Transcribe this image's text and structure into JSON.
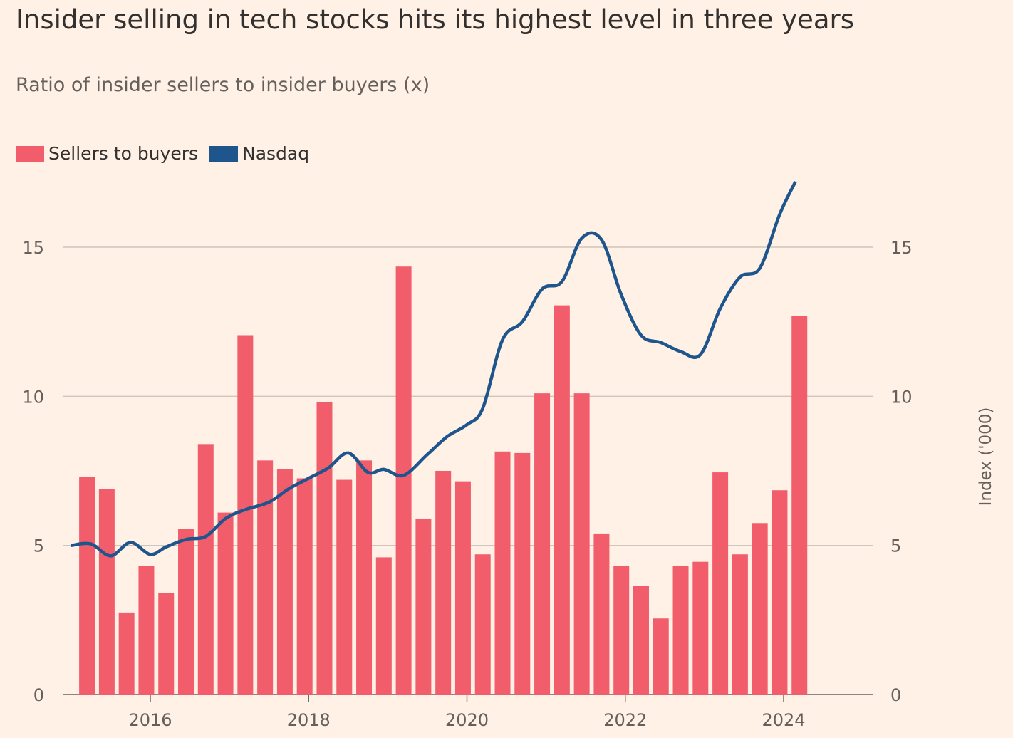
{
  "chart_data": {
    "type": "bar",
    "title": "Insider selling in tech stocks hits its highest level in three years",
    "subtitle": "Ratio of insider sellers to insider buyers (x)",
    "ylabel_right": "Index ('000)",
    "legend": [
      {
        "name": "Sellers to buyers",
        "color": "#F25D6B"
      },
      {
        "name": "Nasdaq",
        "color": "#1E558C"
      }
    ],
    "ylim": [
      0,
      15
    ],
    "y_ticks": [
      0,
      5,
      10,
      15
    ],
    "y_tick_labels_left": [
      "0",
      "5",
      "10",
      "15"
    ],
    "y_tick_labels_right": [
      "0",
      "5",
      "10",
      "15"
    ],
    "x_ticks": [
      2016,
      2018,
      2020,
      2022,
      2024
    ],
    "x_tick_labels": [
      "2016",
      "2018",
      "2020",
      "2022",
      "2024"
    ],
    "xlim": [
      2015.0,
      2025.0
    ],
    "grid": true,
    "series": [
      {
        "name": "Sellers to buyers",
        "type": "bar",
        "color": "#F25D6B",
        "x": [
          2015.2,
          2015.45,
          2015.7,
          2015.95,
          2016.2,
          2016.45,
          2016.7,
          2016.95,
          2017.2,
          2017.45,
          2017.7,
          2017.95,
          2018.2,
          2018.45,
          2018.7,
          2018.95,
          2019.2,
          2019.45,
          2019.7,
          2019.95,
          2020.2,
          2020.45,
          2020.7,
          2020.95,
          2021.2,
          2021.45,
          2021.7,
          2021.95,
          2022.2,
          2022.45,
          2022.7,
          2022.95,
          2023.2,
          2023.45,
          2023.7,
          2023.95,
          2024.2
        ],
        "values": [
          7.3,
          6.9,
          2.75,
          4.3,
          3.4,
          5.55,
          8.4,
          6.1,
          12.05,
          7.85,
          7.55,
          7.25,
          9.8,
          7.2,
          7.85,
          4.6,
          14.35,
          5.9,
          7.5,
          7.15,
          4.7,
          8.15,
          8.1,
          10.1,
          13.05,
          10.1,
          5.4,
          4.3,
          3.65,
          2.55,
          4.3,
          4.45,
          7.45,
          4.7,
          5.75,
          6.85,
          12.7
        ]
      },
      {
        "name": "Nasdaq",
        "type": "line",
        "color": "#1E558C",
        "x": [
          2015.0,
          2015.25,
          2015.5,
          2015.75,
          2016.0,
          2016.2,
          2016.45,
          2016.7,
          2016.95,
          2017.2,
          2017.5,
          2017.75,
          2018.0,
          2018.25,
          2018.5,
          2018.75,
          2018.95,
          2019.2,
          2019.5,
          2019.75,
          2020.0,
          2020.2,
          2020.45,
          2020.7,
          2020.95,
          2021.2,
          2021.45,
          2021.7,
          2021.95,
          2022.2,
          2022.45,
          2022.7,
          2022.95,
          2023.2,
          2023.45,
          2023.7,
          2023.95,
          2024.15
        ],
        "values": [
          5.0,
          5.05,
          4.65,
          5.1,
          4.7,
          4.95,
          5.2,
          5.3,
          5.9,
          6.2,
          6.45,
          6.9,
          7.25,
          7.6,
          8.1,
          7.45,
          7.55,
          7.35,
          8.05,
          8.65,
          9.05,
          9.6,
          11.9,
          12.5,
          13.6,
          13.85,
          15.3,
          15.25,
          13.4,
          12.05,
          11.8,
          11.5,
          11.4,
          12.95,
          14.0,
          14.3,
          16.1,
          17.2
        ]
      }
    ]
  }
}
